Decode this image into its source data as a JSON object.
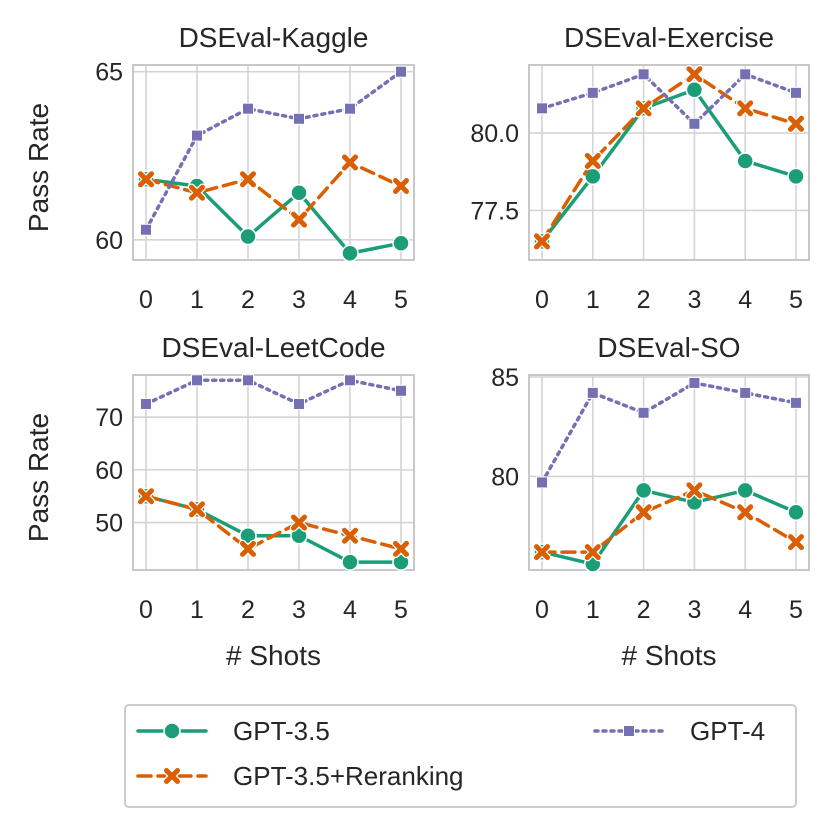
{
  "chart_data": [
    {
      "type": "line",
      "title": "DSEval-Kaggle",
      "xlabel": "",
      "ylabel": "Pass Rate",
      "x": [
        0,
        1,
        2,
        3,
        4,
        5
      ],
      "xticks": [
        "0",
        "1",
        "2",
        "3",
        "4",
        "5"
      ],
      "yticks": [
        60,
        65
      ],
      "ytick_labels": [
        "60",
        "65"
      ],
      "ylim": [
        59.4,
        65.2
      ],
      "series": [
        {
          "name": "GPT-3.5",
          "values": [
            61.8,
            61.6,
            60.1,
            61.4,
            59.6,
            59.9
          ]
        },
        {
          "name": "GPT-3.5+Reranking",
          "values": [
            61.8,
            61.4,
            61.8,
            60.6,
            62.3,
            61.6
          ]
        },
        {
          "name": "GPT-4",
          "values": [
            60.3,
            63.1,
            63.9,
            63.6,
            63.9,
            65.0
          ]
        }
      ]
    },
    {
      "type": "line",
      "title": "DSEval-Exercise",
      "xlabel": "",
      "ylabel": "",
      "x": [
        0,
        1,
        2,
        3,
        4,
        5
      ],
      "xticks": [
        "0",
        "1",
        "2",
        "3",
        "4",
        "5"
      ],
      "yticks": [
        77.5,
        80.0
      ],
      "ytick_labels": [
        "77.5",
        "80.0"
      ],
      "ylim": [
        75.9,
        82.2
      ],
      "series": [
        {
          "name": "GPT-3.5",
          "values": [
            76.5,
            78.6,
            80.8,
            81.4,
            79.1,
            78.6
          ]
        },
        {
          "name": "GPT-3.5+Reranking",
          "values": [
            76.5,
            79.1,
            80.8,
            81.9,
            80.8,
            80.3
          ]
        },
        {
          "name": "GPT-4",
          "values": [
            80.8,
            81.3,
            81.9,
            80.3,
            81.9,
            81.3
          ]
        }
      ]
    },
    {
      "type": "line",
      "title": "DSEval-LeetCode",
      "xlabel": "# Shots",
      "ylabel": "Pass Rate",
      "x": [
        0,
        1,
        2,
        3,
        4,
        5
      ],
      "xticks": [
        "0",
        "1",
        "2",
        "3",
        "4",
        "5"
      ],
      "yticks": [
        50,
        60,
        70
      ],
      "ytick_labels": [
        "50",
        "60",
        "70"
      ],
      "ylim": [
        41,
        78
      ],
      "series": [
        {
          "name": "GPT-3.5",
          "values": [
            55.0,
            52.5,
            47.5,
            47.5,
            42.5,
            42.5
          ]
        },
        {
          "name": "GPT-3.5+Reranking",
          "values": [
            55.0,
            52.5,
            45.0,
            50.0,
            47.5,
            45.0
          ]
        },
        {
          "name": "GPT-4",
          "values": [
            72.5,
            77.0,
            77.0,
            72.5,
            77.0,
            75.0
          ]
        }
      ]
    },
    {
      "type": "line",
      "title": "DSEval-SO",
      "xlabel": "# Shots",
      "ylabel": "",
      "x": [
        0,
        1,
        2,
        3,
        4,
        5
      ],
      "xticks": [
        "0",
        "1",
        "2",
        "3",
        "4",
        "5"
      ],
      "yticks": [
        80,
        85
      ],
      "ytick_labels": [
        "80",
        "85"
      ],
      "ylim": [
        75.3,
        85.1
      ],
      "series": [
        {
          "name": "GPT-3.5",
          "values": [
            76.2,
            75.6,
            79.3,
            78.7,
            79.3,
            78.2
          ]
        },
        {
          "name": "GPT-3.5+Reranking",
          "values": [
            76.2,
            76.2,
            78.2,
            79.3,
            78.2,
            76.7
          ]
        },
        {
          "name": "GPT-4",
          "values": [
            79.7,
            84.2,
            83.2,
            84.7,
            84.2,
            83.7
          ]
        }
      ]
    }
  ],
  "legend": {
    "position": "bottom",
    "entries": [
      {
        "name": "GPT-3.5",
        "color": "#1b9e77",
        "marker": "circle",
        "dash": "solid"
      },
      {
        "name": "GPT-3.5+Reranking",
        "color": "#d95f02",
        "marker": "x",
        "dash": "dashed"
      },
      {
        "name": "GPT-4",
        "color": "#7570b3",
        "marker": "square",
        "dash": "dotted"
      }
    ]
  }
}
